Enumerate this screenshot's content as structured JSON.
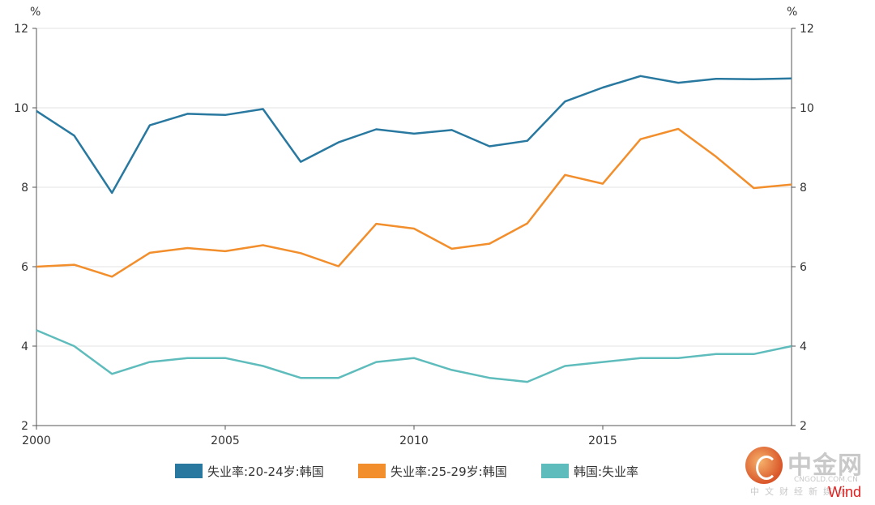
{
  "chart_data": {
    "type": "line",
    "x": [
      2000,
      2001,
      2002,
      2003,
      2004,
      2005,
      2006,
      2007,
      2008,
      2009,
      2010,
      2011,
      2012,
      2013,
      2014,
      2015,
      2016,
      2017,
      2018,
      2019,
      2020
    ],
    "x_ticks": [
      "2000",
      "2005",
      "2010",
      "2015"
    ],
    "xlim": [
      2000,
      2020
    ],
    "ylim": [
      2,
      12
    ],
    "y_ticks": [
      "2",
      "4",
      "6",
      "8",
      "10",
      "12"
    ],
    "y_unit_left": "%",
    "y_unit_right": "%",
    "grid": "horizontal",
    "legend_position": "bottom",
    "series": [
      {
        "name": "失业率:20-24岁:韩国",
        "color": "#2878a0",
        "values": [
          9.92,
          9.3,
          7.86,
          9.56,
          9.85,
          9.82,
          9.97,
          8.64,
          9.13,
          9.46,
          9.35,
          9.44,
          9.03,
          9.17,
          10.16,
          10.51,
          10.8,
          10.63,
          10.73,
          10.72,
          10.74
        ]
      },
      {
        "name": "失业率:25-29岁:韩国",
        "color": "#f28e2b",
        "values": [
          6.0,
          6.05,
          5.75,
          6.35,
          6.47,
          6.39,
          6.54,
          6.34,
          6.01,
          7.08,
          6.96,
          6.45,
          6.58,
          7.09,
          8.31,
          8.09,
          9.21,
          9.47,
          8.77,
          7.98,
          8.07
        ]
      },
      {
        "name": "韩国:失业率",
        "color": "#5fbcbc",
        "values": [
          4.4,
          4.0,
          3.3,
          3.6,
          3.7,
          3.7,
          3.5,
          3.2,
          3.2,
          3.6,
          3.7,
          3.4,
          3.2,
          3.1,
          3.5,
          3.6,
          3.7,
          3.7,
          3.8,
          3.8,
          4.0
        ]
      }
    ]
  },
  "watermark": {
    "name": "中金网",
    "site": "CNGOLD.COM.CN",
    "subtitle": "中文财经新媒体",
    "wind": "Wind"
  }
}
